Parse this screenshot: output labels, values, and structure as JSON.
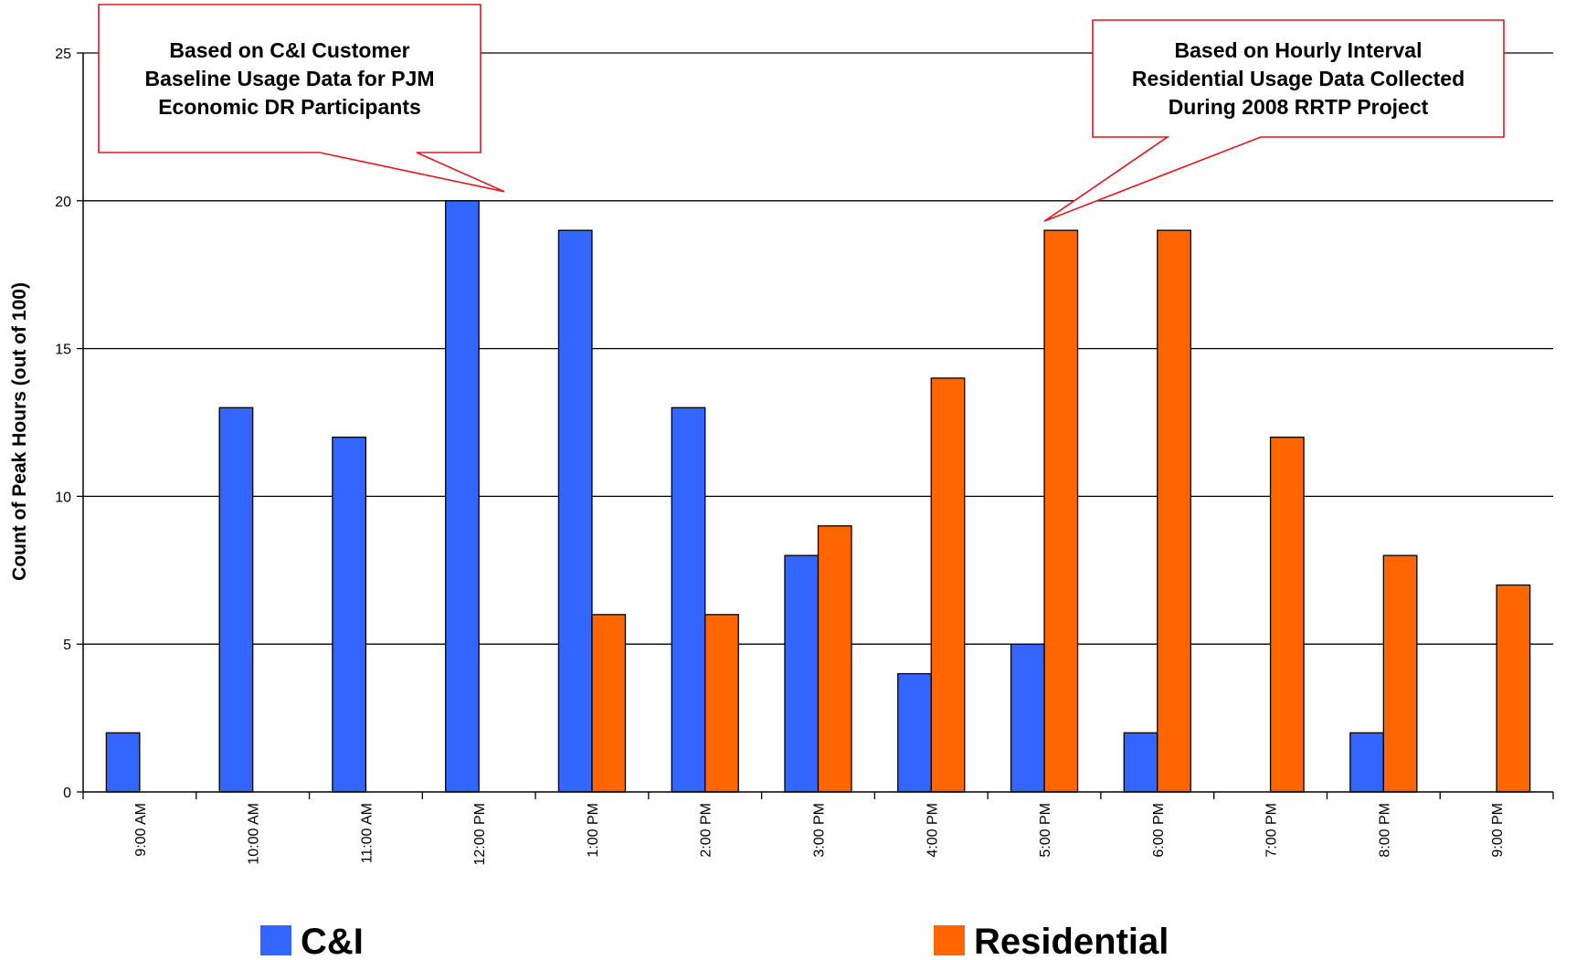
{
  "chart_data": {
    "type": "bar",
    "title": "",
    "xlabel": "",
    "ylabel": "Count of Peak Hours (out of 100)",
    "ylim": [
      0,
      25
    ],
    "yticks": [
      0,
      5,
      10,
      15,
      20,
      25
    ],
    "grid": true,
    "legend_position": "bottom",
    "categories": [
      "9:00 AM",
      "10:00 AM",
      "11:00 AM",
      "12:00 PM",
      "1:00 PM",
      "2:00 PM",
      "3:00 PM",
      "4:00 PM",
      "5:00 PM",
      "6:00 PM",
      "7:00 PM",
      "8:00 PM",
      "9:00 PM"
    ],
    "series": [
      {
        "name": "C&I",
        "color": "#3366ff",
        "values": [
          2,
          13,
          12,
          20,
          19,
          13,
          8,
          4,
          5,
          2,
          0,
          2,
          0
        ]
      },
      {
        "name": "Residential",
        "color": "#ff6600",
        "values": [
          0,
          0,
          0,
          0,
          6,
          6,
          9,
          14,
          19,
          19,
          12,
          8,
          7
        ]
      }
    ],
    "annotations": [
      {
        "lines": [
          "Based on C&I Customer",
          "Baseline Usage Data for PJM",
          "Economic DR Participants"
        ],
        "points_to": {
          "category": "12:00 PM",
          "value": 20
        }
      },
      {
        "lines": [
          "Based on Hourly Interval",
          "Residential Usage Data Collected",
          "During 2008 RRTP Project"
        ],
        "points_to": {
          "category": "5:00 PM",
          "value": 19
        }
      }
    ]
  }
}
